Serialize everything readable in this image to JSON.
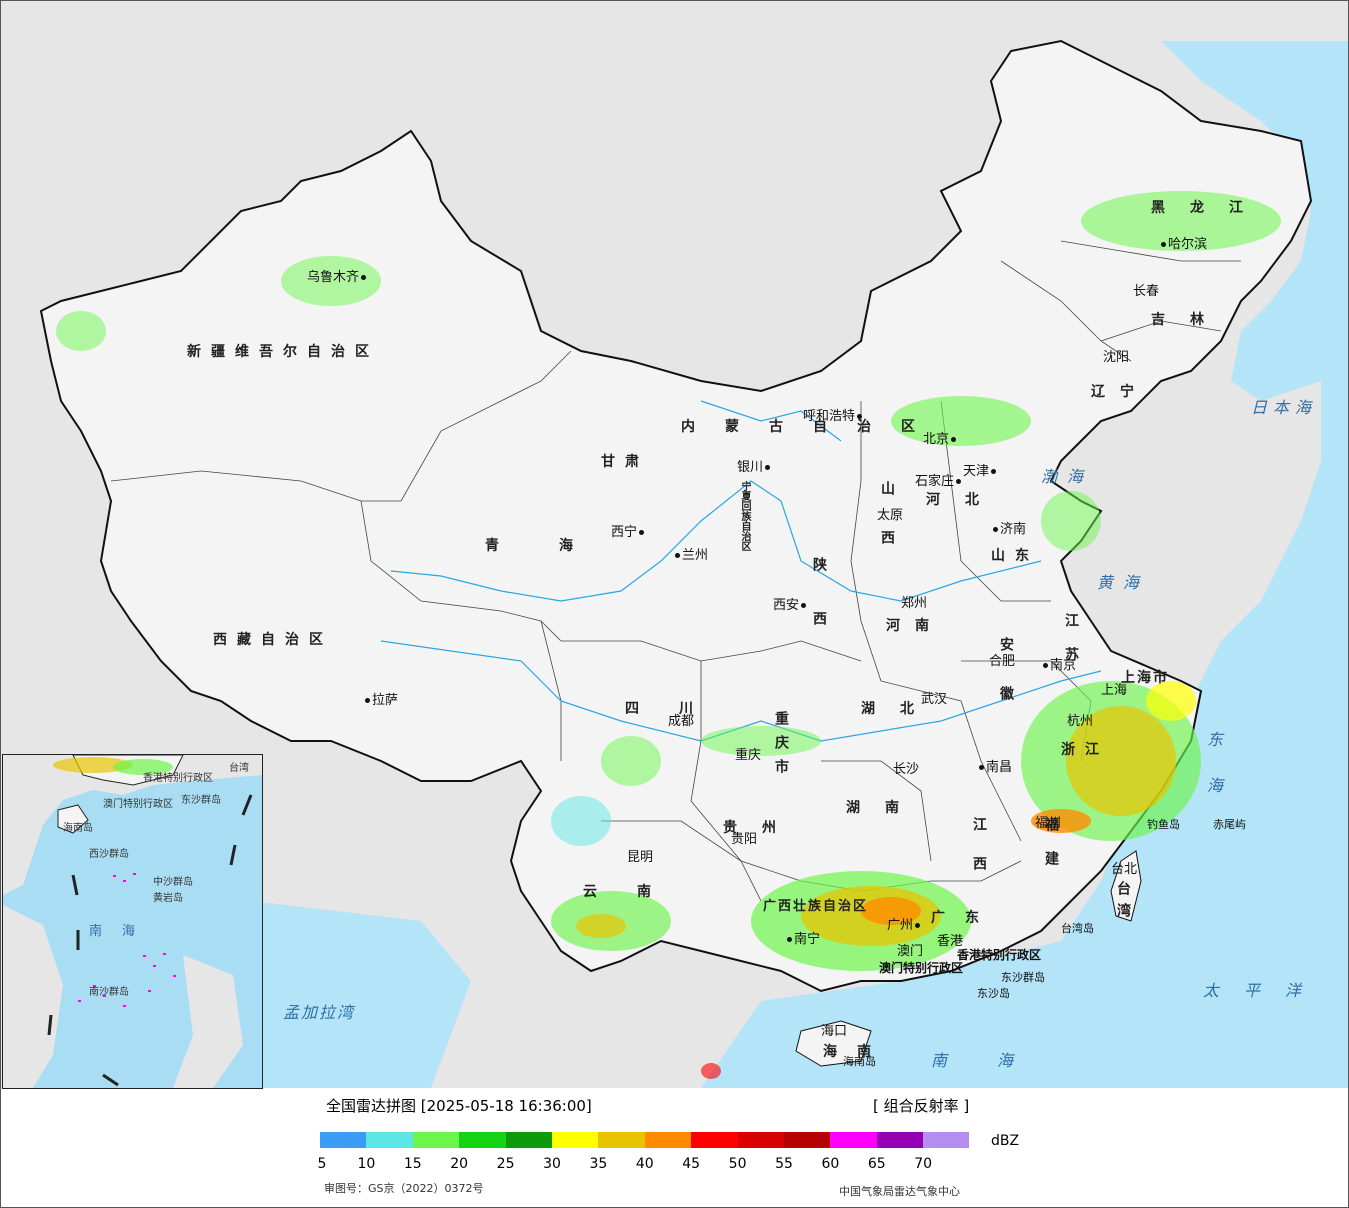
{
  "legend": {
    "title": "全国雷达拼图 [2025-05-18 16:36:00]",
    "product": "[ 组合反射率 ]",
    "unit": "dBZ",
    "ticks": [
      "5",
      "10",
      "15",
      "20",
      "25",
      "30",
      "35",
      "40",
      "45",
      "50",
      "55",
      "60",
      "65",
      "70"
    ],
    "colors": [
      "#3a9cf4",
      "#5de6e6",
      "#6cf54a",
      "#14d414",
      "#0a9a0a",
      "#ffff00",
      "#e8c400",
      "#ff8c00",
      "#ff0000",
      "#d80000",
      "#b40000",
      "#ff00ff",
      "#9400b4",
      "#b48ef0"
    ],
    "approval": "审图号：GS京（2022）0372号",
    "agency": "中国气象局雷达气象中心"
  },
  "map": {
    "provinces": [
      {
        "name": "新疆维吾尔自治区"
      },
      {
        "name": "西藏自治区"
      },
      {
        "name": "青海"
      },
      {
        "name": "甘肃"
      },
      {
        "name": "内蒙古自治区"
      },
      {
        "name": "黑龙江"
      },
      {
        "name": "吉林"
      },
      {
        "name": "辽宁"
      },
      {
        "name": "河北"
      },
      {
        "name": "山西"
      },
      {
        "name": "陕西"
      },
      {
        "name": "山东"
      },
      {
        "name": "河南"
      },
      {
        "name": "江苏"
      },
      {
        "name": "安徽"
      },
      {
        "name": "湖北"
      },
      {
        "name": "四川"
      },
      {
        "name": "重庆市"
      },
      {
        "name": "湖南"
      },
      {
        "name": "江西"
      },
      {
        "name": "浙江"
      },
      {
        "name": "福建"
      },
      {
        "name": "贵州"
      },
      {
        "name": "云南"
      },
      {
        "name": "广西壮族自治区"
      },
      {
        "name": "广东"
      },
      {
        "name": "海南"
      },
      {
        "name": "台湾"
      },
      {
        "name": "宁夏回族自治区"
      },
      {
        "name": "上海市"
      }
    ],
    "cities": [
      {
        "name": "乌鲁木齐"
      },
      {
        "name": "拉萨"
      },
      {
        "name": "西宁"
      },
      {
        "name": "兰州"
      },
      {
        "name": "银川"
      },
      {
        "name": "呼和浩特"
      },
      {
        "name": "北京"
      },
      {
        "name": "天津"
      },
      {
        "name": "石家庄"
      },
      {
        "name": "太原"
      },
      {
        "name": "济南"
      },
      {
        "name": "郑州"
      },
      {
        "name": "西安"
      },
      {
        "name": "成都"
      },
      {
        "name": "重庆"
      },
      {
        "name": "武汉"
      },
      {
        "name": "合肥"
      },
      {
        "name": "南京"
      },
      {
        "name": "上海"
      },
      {
        "name": "杭州"
      },
      {
        "name": "南昌"
      },
      {
        "name": "长沙"
      },
      {
        "name": "贵阳"
      },
      {
        "name": "昆明"
      },
      {
        "name": "南宁"
      },
      {
        "name": "广州"
      },
      {
        "name": "福州"
      },
      {
        "name": "台北"
      },
      {
        "name": "海口"
      },
      {
        "name": "哈尔滨"
      },
      {
        "name": "长春"
      },
      {
        "name": "沈阳"
      },
      {
        "name": "香港"
      },
      {
        "name": "澳门"
      }
    ],
    "seas": [
      {
        "name": "渤海"
      },
      {
        "name": "黄海"
      },
      {
        "name": "东海"
      },
      {
        "name": "南海"
      },
      {
        "name": "太平洋"
      },
      {
        "name": "日本海"
      },
      {
        "name": "孟加拉湾"
      }
    ],
    "islands": [
      {
        "name": "钓鱼岛"
      },
      {
        "name": "赤尾屿"
      },
      {
        "name": "台湾岛"
      },
      {
        "name": "东沙群岛"
      },
      {
        "name": "东沙岛"
      },
      {
        "name": "海南岛"
      },
      {
        "name": "香港特别行政区"
      },
      {
        "name": "澳门特别行政区"
      }
    ]
  },
  "inset": {
    "labels": [
      {
        "name": "香港特别行政区"
      },
      {
        "name": "澳门特别行政区"
      },
      {
        "name": "东沙群岛"
      },
      {
        "name": "海南岛"
      },
      {
        "name": "西沙群岛"
      },
      {
        "name": "中沙群岛"
      },
      {
        "name": "黄岩岛"
      },
      {
        "name": "南沙群岛"
      },
      {
        "name": "南海"
      },
      {
        "name": "台湾"
      }
    ]
  }
}
